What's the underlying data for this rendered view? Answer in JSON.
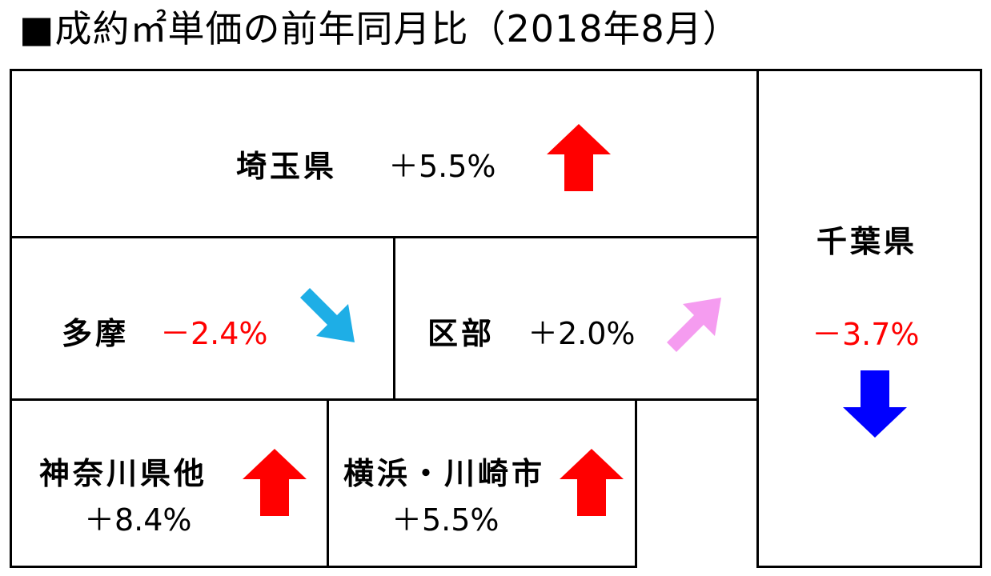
{
  "title": "■成約㎡単価の前年同月比（2018年8月）",
  "colors": {
    "up": "#ff0000",
    "down_small": "#1eaee6",
    "down_large": "#0000ff",
    "up_small": "#f59cf0",
    "negative_text": "#ff0000"
  },
  "regions": {
    "saitama": {
      "name": "埼玉県",
      "value": "＋5.5%",
      "trend": "up"
    },
    "chiba": {
      "name": "千葉県",
      "value": "－3.7%",
      "trend": "down"
    },
    "tama": {
      "name": "多摩",
      "value": "－2.4%",
      "trend": "slightly-down"
    },
    "ku": {
      "name": "区部",
      "value": "＋2.0%",
      "trend": "slightly-up"
    },
    "kanagawa": {
      "name": "神奈川県他",
      "value": "＋8.4%",
      "trend": "up"
    },
    "yokohama": {
      "name": "横浜・川崎市",
      "value": "＋5.5%",
      "trend": "up"
    }
  }
}
